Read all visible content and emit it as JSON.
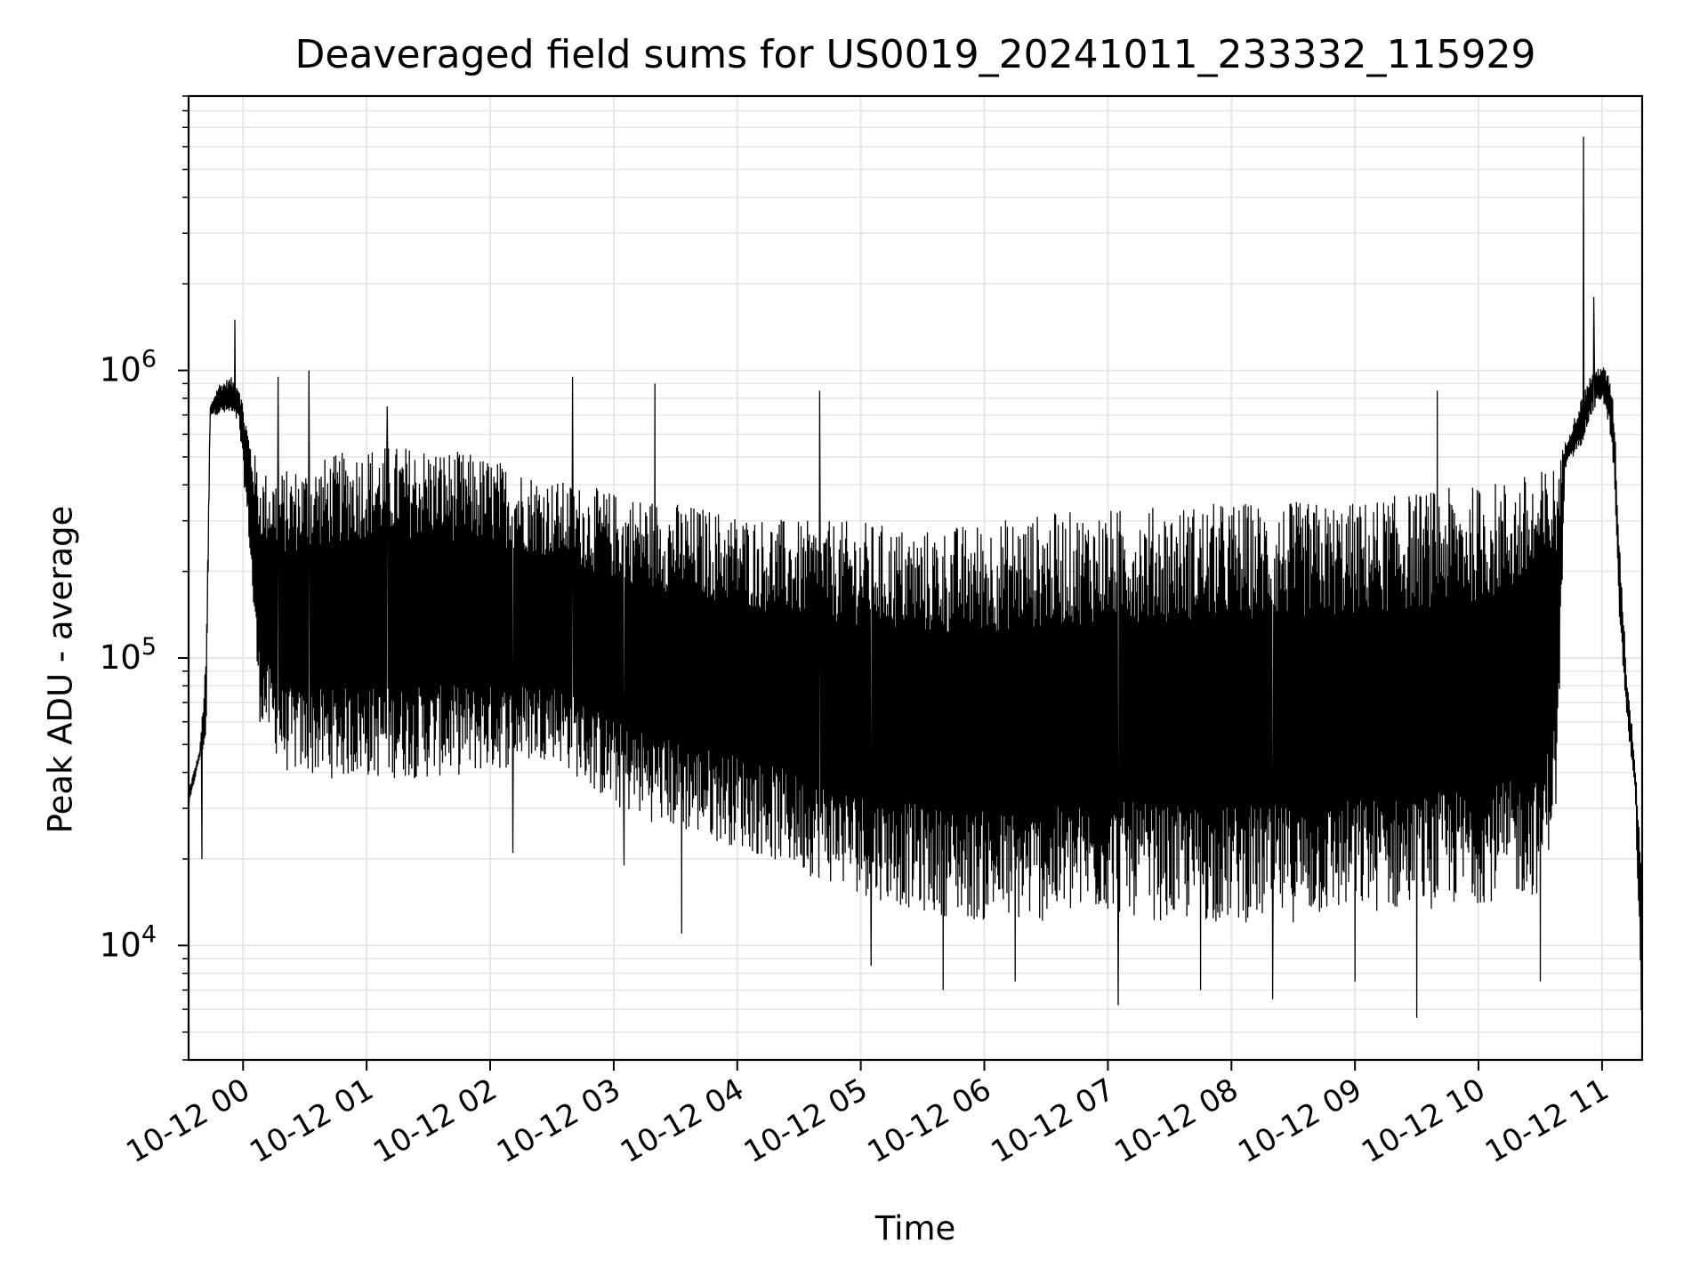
{
  "chart_data": {
    "type": "line",
    "title": "Deaveraged field sums for US0019_20241011_233332_115929",
    "xlabel": "Time",
    "ylabel": "Peak ADU - average",
    "yscale": "log",
    "grid": true,
    "line_color": "#000000",
    "grid_color": "#e6e6e6",
    "ylim": [
      4000,
      9000000
    ],
    "xlim": [
      "2024-10-11 23:33:32",
      "2024-10-12 11:19:29"
    ],
    "x_ticks": [
      {
        "t": "2024-10-12 00:00",
        "label": "10-12 00"
      },
      {
        "t": "2024-10-12 01:00",
        "label": "10-12 01"
      },
      {
        "t": "2024-10-12 02:00",
        "label": "10-12 02"
      },
      {
        "t": "2024-10-12 03:00",
        "label": "10-12 03"
      },
      {
        "t": "2024-10-12 04:00",
        "label": "10-12 04"
      },
      {
        "t": "2024-10-12 05:00",
        "label": "10-12 05"
      },
      {
        "t": "2024-10-12 06:00",
        "label": "10-12 06"
      },
      {
        "t": "2024-10-12 07:00",
        "label": "10-12 07"
      },
      {
        "t": "2024-10-12 08:00",
        "label": "10-12 08"
      },
      {
        "t": "2024-10-12 09:00",
        "label": "10-12 09"
      },
      {
        "t": "2024-10-12 10:00",
        "label": "10-12 10"
      },
      {
        "t": "2024-10-12 11:00",
        "label": "10-12 11"
      }
    ],
    "y_ticks": [
      {
        "value": 10000,
        "base": "10",
        "exp": "4"
      },
      {
        "value": 100000,
        "base": "10",
        "exp": "5"
      },
      {
        "value": 1000000,
        "base": "10",
        "exp": "6"
      }
    ],
    "band_envelope": {
      "t": [
        "2024-10-11 23:33:32",
        "2024-10-11 23:39",
        "2024-10-11 23:42",
        "2024-10-11 23:44",
        "2024-10-11 23:48",
        "2024-10-11 23:54",
        "2024-10-11 23:58",
        "2024-10-12 00:03",
        "2024-10-12 00:08",
        "2024-10-12 00:20",
        "2024-10-12 00:40",
        "2024-10-12 01:00",
        "2024-10-12 01:30",
        "2024-10-12 02:00",
        "2024-10-12 02:30",
        "2024-10-12 03:00",
        "2024-10-12 03:30",
        "2024-10-12 04:00",
        "2024-10-12 04:30",
        "2024-10-12 05:00",
        "2024-10-12 05:30",
        "2024-10-12 06:00",
        "2024-10-12 06:30",
        "2024-10-12 07:00",
        "2024-10-12 07:30",
        "2024-10-12 08:00",
        "2024-10-12 08:30",
        "2024-10-12 09:00",
        "2024-10-12 09:30",
        "2024-10-12 10:00",
        "2024-10-12 10:30",
        "2024-10-12 10:38",
        "2024-10-12 10:42",
        "2024-10-12 10:50",
        "2024-10-12 10:55",
        "2024-10-12 11:00",
        "2024-10-12 11:04",
        "2024-10-12 11:06",
        "2024-10-12 11:08",
        "2024-10-12 11:12",
        "2024-10-12 11:16",
        "2024-10-12 11:19:29"
      ],
      "high": [
        35000,
        48000,
        100000,
        750000,
        900000,
        950000,
        900000,
        600000,
        450000,
        450000,
        500000,
        550000,
        550000,
        500000,
        420000,
        380000,
        350000,
        320000,
        300000,
        300000,
        280000,
        300000,
        320000,
        330000,
        340000,
        350000,
        350000,
        350000,
        380000,
        400000,
        450000,
        480000,
        560000,
        800000,
        1000000,
        1050000,
        950000,
        700000,
        300000,
        90000,
        45000,
        20000
      ],
      "low": [
        30000,
        45000,
        50000,
        700000,
        700000,
        700000,
        650000,
        250000,
        60000,
        40000,
        38000,
        38000,
        38000,
        40000,
        45000,
        30000,
        25000,
        22000,
        18000,
        15000,
        13000,
        12000,
        12000,
        13000,
        12000,
        12000,
        12000,
        13000,
        13000,
        14000,
        15000,
        30000,
        450000,
        550000,
        700000,
        800000,
        600000,
        400000,
        150000,
        60000,
        35000,
        4500
      ]
    },
    "spikes": [
      {
        "t": "2024-10-11 23:40",
        "value": 20000
      },
      {
        "t": "2024-10-11 23:56",
        "value": 1500000
      },
      {
        "t": "2024-10-12 00:17",
        "value": 950000
      },
      {
        "t": "2024-10-12 00:32",
        "value": 1000000
      },
      {
        "t": "2024-10-12 01:10",
        "value": 750000
      },
      {
        "t": "2024-10-12 02:11",
        "value": 21000
      },
      {
        "t": "2024-10-12 02:40",
        "value": 950000
      },
      {
        "t": "2024-10-12 03:05",
        "value": 19000
      },
      {
        "t": "2024-10-12 03:20",
        "value": 900000
      },
      {
        "t": "2024-10-12 03:33",
        "value": 11000
      },
      {
        "t": "2024-10-12 04:40",
        "value": 850000
      },
      {
        "t": "2024-10-12 05:05",
        "value": 8500
      },
      {
        "t": "2024-10-12 05:40",
        "value": 7000
      },
      {
        "t": "2024-10-12 06:15",
        "value": 7500
      },
      {
        "t": "2024-10-12 07:05",
        "value": 6200
      },
      {
        "t": "2024-10-12 07:45",
        "value": 7000
      },
      {
        "t": "2024-10-12 08:20",
        "value": 6500
      },
      {
        "t": "2024-10-12 09:00",
        "value": 7500
      },
      {
        "t": "2024-10-12 09:30",
        "value": 5600
      },
      {
        "t": "2024-10-12 09:40",
        "value": 850000
      },
      {
        "t": "2024-10-12 10:30",
        "value": 7500
      },
      {
        "t": "2024-10-12 10:51",
        "value": 6500000
      },
      {
        "t": "2024-10-12 10:56",
        "value": 1800000
      }
    ]
  }
}
